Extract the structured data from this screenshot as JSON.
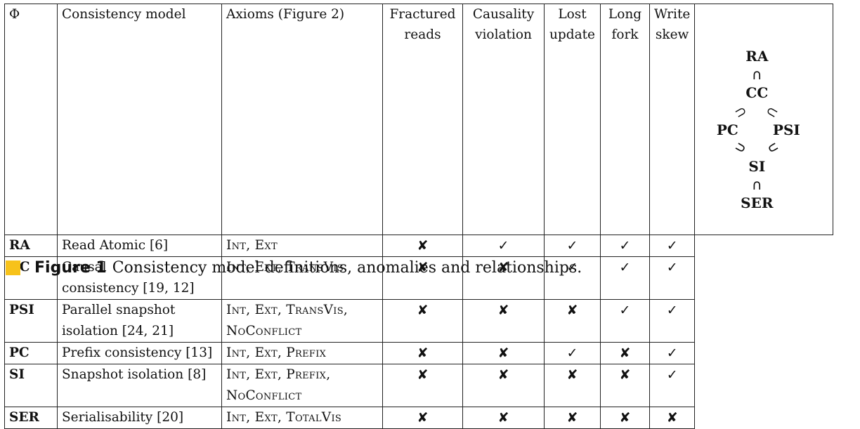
{
  "table": {
    "headers": [
      [
        "Φ"
      ],
      [
        "Consistency model"
      ],
      [
        "Axioms (Figure 2)"
      ],
      [
        "Fractured",
        "reads"
      ],
      [
        "Causality",
        "violation"
      ],
      [
        "Lost",
        "update"
      ],
      [
        "Long",
        "fork"
      ],
      [
        "Write",
        "skew"
      ]
    ],
    "rows": [
      {
        "code": "RA",
        "model": [
          "Read Atomic [6]"
        ],
        "axioms": [
          "Int, Ext"
        ],
        "marks": [
          "✘",
          "✓",
          "✓",
          "✓",
          "✓"
        ]
      },
      {
        "code": "CC",
        "model": [
          "Causal",
          "consistency [19, 12]"
        ],
        "axioms": [
          "Int, Ext, TransVis"
        ],
        "marks": [
          "✘",
          "✘",
          "✓",
          "✓",
          "✓"
        ]
      },
      {
        "code": "PSI",
        "model": [
          "Parallel snapshot",
          "isolation [24, 21]"
        ],
        "axioms": [
          "Int, Ext, TransVis,",
          "NoConflict"
        ],
        "marks": [
          "✘",
          "✘",
          "✘",
          "✓",
          "✓"
        ]
      },
      {
        "code": "PC",
        "model": [
          "Prefix consistency [13]"
        ],
        "axioms": [
          "Int, Ext, Prefix"
        ],
        "marks": [
          "✘",
          "✘",
          "✓",
          "✘",
          "✓"
        ]
      },
      {
        "code": "SI",
        "model": [
          "Snapshot isolation [8]"
        ],
        "axioms": [
          "Int, Ext, Prefix,",
          "NoConflict"
        ],
        "marks": [
          "✘",
          "✘",
          "✘",
          "✘",
          "✓"
        ]
      },
      {
        "code": "SER",
        "model": [
          "Serialisability [20]"
        ],
        "axioms": [
          "Int, Ext, TotalVis"
        ],
        "marks": [
          "✘",
          "✘",
          "✘",
          "✘",
          "✘"
        ]
      }
    ]
  },
  "hierarchy": {
    "nodes": {
      "ra": "RA",
      "cc": "CC",
      "pc": "PC",
      "psi": "PSI",
      "si": "SI",
      "ser": "SER"
    },
    "symbols": {
      "cap": "∩",
      "subset_left": "⊃",
      "subset_right": "⊂"
    }
  },
  "caption": {
    "label": "Figure 1",
    "text": "Consistency model definitions, anomalies and relationships.",
    "accent_color": "#f7c21a"
  }
}
